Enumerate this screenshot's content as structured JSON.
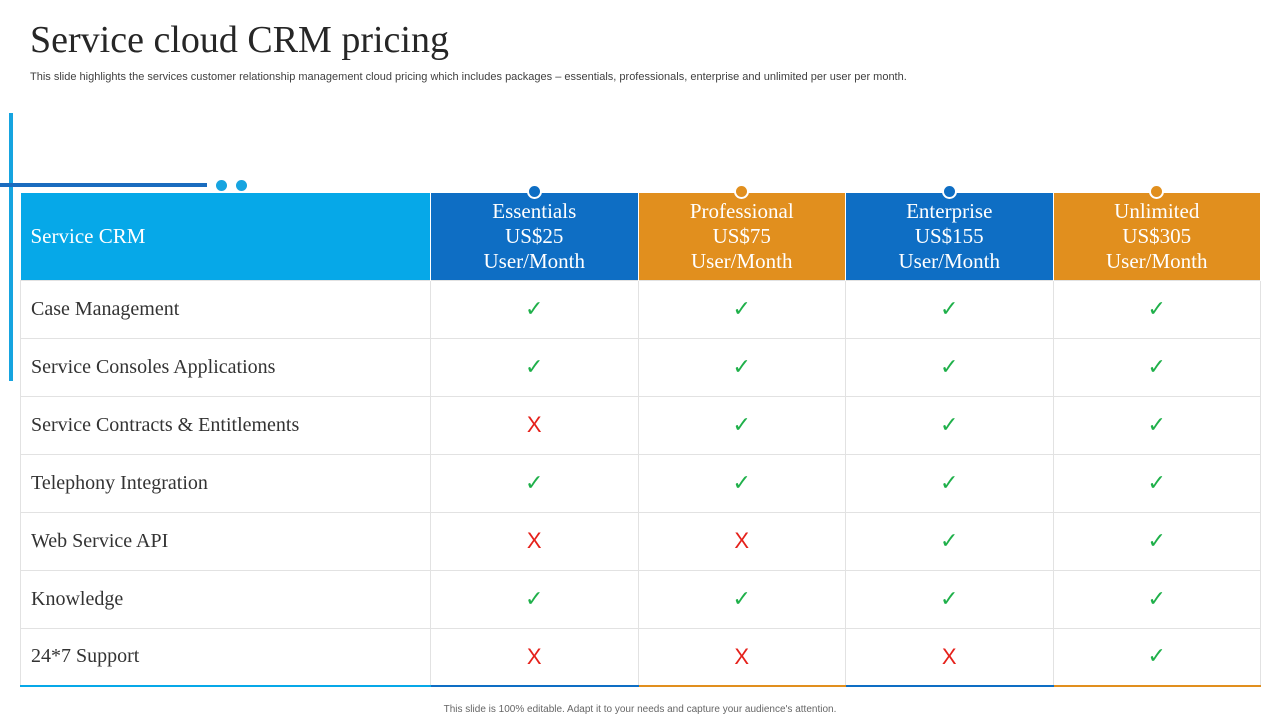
{
  "slide": {
    "title": "Service cloud CRM pricing",
    "subtitle": "This slide highlights the services customer relationship management cloud pricing which includes packages – essentials, professionals, enterprise and unlimited per user per month.",
    "footer": "This slide is 100% editable. Adapt it to your needs and capture your audience's attention."
  },
  "colors": {
    "feature_header": "#06a8e8",
    "blue": "#0e6ec4",
    "orange": "#e18f1e",
    "check": "#1fb04a",
    "cross": "#e5211b"
  },
  "table": {
    "feature_header": "Service CRM",
    "plans": [
      {
        "name": "Essentials",
        "price": "US$25",
        "unit": "User/Month",
        "color": "blue"
      },
      {
        "name": "Professional",
        "price": "US$75",
        "unit": "User/Month",
        "color": "orange"
      },
      {
        "name": "Enterprise",
        "price": "US$155",
        "unit": "User/Month",
        "color": "blue"
      },
      {
        "name": "Unlimited",
        "price": "US$305",
        "unit": "User/Month",
        "color": "orange"
      }
    ],
    "symbols": {
      "yes": "✓",
      "no": "X"
    },
    "rows": [
      {
        "feature": "Case Management",
        "values": [
          true,
          true,
          true,
          true
        ]
      },
      {
        "feature": "Service Consoles Applications",
        "values": [
          true,
          true,
          true,
          true
        ]
      },
      {
        "feature": "Service Contracts & Entitlements",
        "values": [
          false,
          true,
          true,
          true
        ]
      },
      {
        "feature": "Telephony Integration",
        "values": [
          true,
          true,
          true,
          true
        ]
      },
      {
        "feature": "Web Service API",
        "values": [
          false,
          false,
          true,
          true
        ]
      },
      {
        "feature": "Knowledge",
        "values": [
          true,
          true,
          true,
          true
        ]
      },
      {
        "feature": "24*7 Support",
        "values": [
          false,
          false,
          false,
          true
        ]
      }
    ]
  }
}
